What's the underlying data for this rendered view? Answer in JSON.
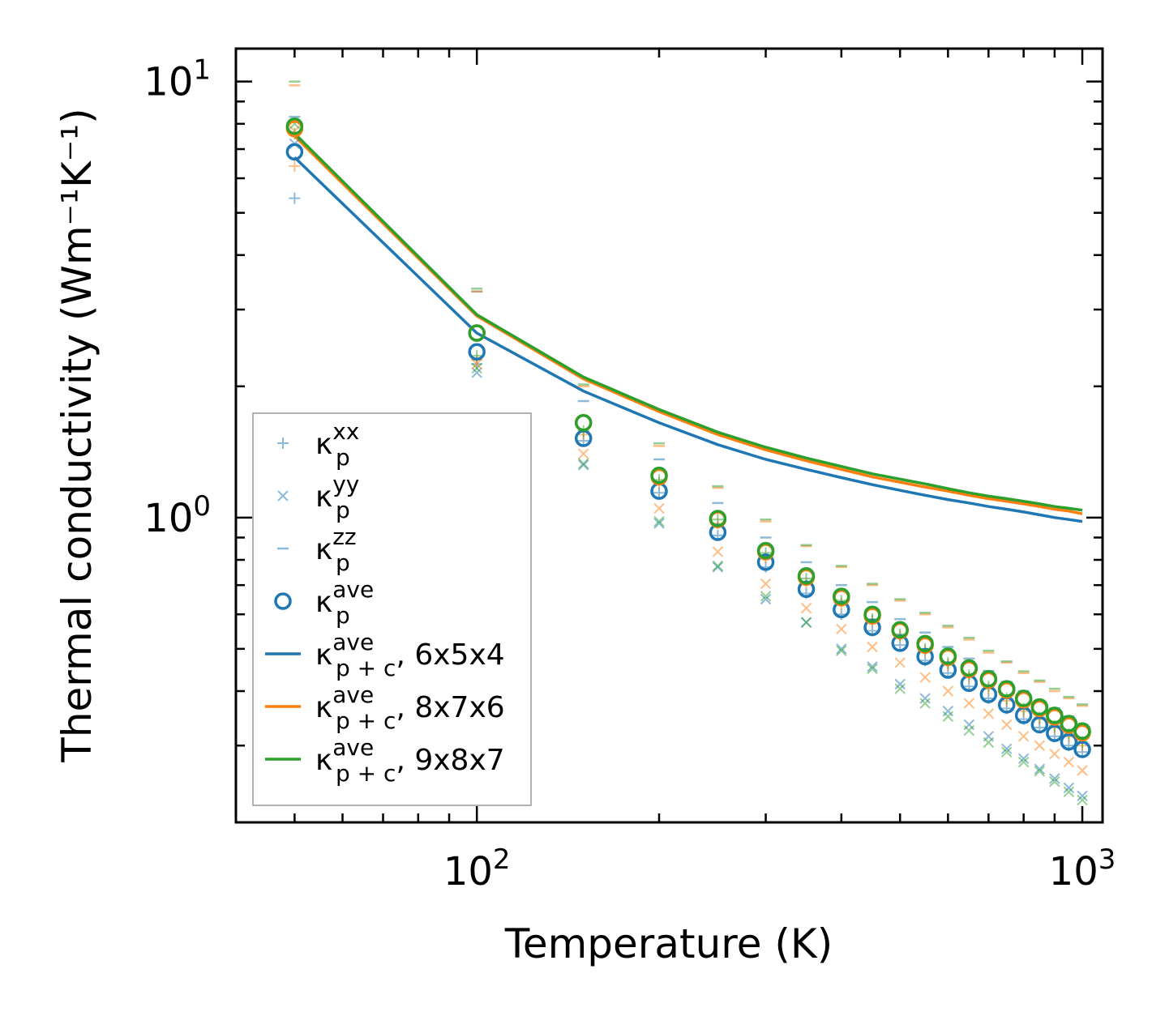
{
  "chart_data": {
    "type": "scatter",
    "xscale": "log",
    "yscale": "log",
    "xlabel": "Temperature (K)",
    "ylabel": "Thermal conductivity (Wm⁻¹K⁻¹)",
    "xlim": [
      40,
      1080
    ],
    "ylim": [
      0.2,
      11.9
    ],
    "x_ticks": [
      {
        "value": 100,
        "base": "10",
        "exp": "2"
      },
      {
        "value": 1000,
        "base": "10",
        "exp": "3"
      }
    ],
    "y_ticks": [
      {
        "value": 1,
        "base": "10",
        "exp": "0"
      },
      {
        "value": 10,
        "base": "10",
        "exp": "1"
      }
    ],
    "x": [
      50,
      100,
      150,
      200,
      250,
      300,
      350,
      400,
      450,
      500,
      550,
      600,
      650,
      700,
      750,
      800,
      850,
      900,
      950,
      1000
    ],
    "colors": {
      "blue": "#1f77b4",
      "orange": "#ff7f0e",
      "green": "#2ca02c"
    },
    "legend": {
      "placement": "lower-left",
      "entries": [
        {
          "marker": "plus",
          "symbol": "κ",
          "sub": "p",
          "sup": "xx",
          "suffix": ""
        },
        {
          "marker": "x",
          "symbol": "κ",
          "sub": "p",
          "sup": "yy",
          "suffix": ""
        },
        {
          "marker": "dash",
          "symbol": "κ",
          "sub": "p",
          "sup": "zz",
          "suffix": ""
        },
        {
          "marker": "circle",
          "symbol": "κ",
          "sub": "p",
          "sup": "ave",
          "suffix": ""
        },
        {
          "marker": "line",
          "color": "blue",
          "symbol": "κ",
          "sub": "p + c",
          "sup": "ave",
          "suffix": ", 6x5x4"
        },
        {
          "marker": "line",
          "color": "orange",
          "symbol": "κ",
          "sub": "p + c",
          "sup": "ave",
          "suffix": ", 8x7x6"
        },
        {
          "marker": "line",
          "color": "green",
          "symbol": "κ",
          "sub": "p + c",
          "sup": "ave",
          "suffix": ", 9x8x7"
        }
      ]
    },
    "series": [
      {
        "name": "6x5x4",
        "color": "blue",
        "xx": [
          5.4,
          2.25,
          1.5,
          1.14,
          0.91,
          0.77,
          0.67,
          0.6,
          0.55,
          0.51,
          0.47,
          0.44,
          0.41,
          0.385,
          0.365,
          0.345,
          0.33,
          0.315,
          0.3,
          0.29
        ],
        "yy": [
          7.2,
          2.15,
          1.32,
          0.97,
          0.77,
          0.65,
          0.575,
          0.5,
          0.455,
          0.415,
          0.385,
          0.36,
          0.335,
          0.315,
          0.295,
          0.28,
          0.265,
          0.252,
          0.24,
          0.23
        ],
        "zz": [
          8.3,
          3.3,
          1.85,
          1.36,
          1.08,
          0.9,
          0.79,
          0.7,
          0.64,
          0.585,
          0.545,
          0.505,
          0.475,
          0.445,
          0.42,
          0.4,
          0.38,
          0.365,
          0.35,
          0.335
        ],
        "ave": [
          6.9,
          2.4,
          1.52,
          1.15,
          0.925,
          0.79,
          0.685,
          0.615,
          0.56,
          0.515,
          0.48,
          0.447,
          0.417,
          0.393,
          0.372,
          0.352,
          0.335,
          0.32,
          0.306,
          0.294
        ],
        "line": [
          6.7,
          2.65,
          1.95,
          1.65,
          1.47,
          1.36,
          1.29,
          1.235,
          1.19,
          1.155,
          1.125,
          1.1,
          1.08,
          1.06,
          1.045,
          1.03,
          1.015,
          1.0,
          0.99,
          0.98
        ]
      },
      {
        "name": "8x7x6",
        "color": "orange",
        "xx": [
          6.4,
          2.3,
          1.55,
          1.2,
          0.97,
          0.81,
          0.71,
          0.635,
          0.58,
          0.535,
          0.495,
          0.46,
          0.43,
          0.405,
          0.38,
          0.36,
          0.345,
          0.33,
          0.315,
          0.3
        ],
        "yy": [
          7.7,
          2.25,
          1.4,
          1.05,
          0.835,
          0.705,
          0.62,
          0.555,
          0.505,
          0.465,
          0.43,
          0.4,
          0.375,
          0.355,
          0.335,
          0.315,
          0.3,
          0.287,
          0.275,
          0.263
        ],
        "zz": [
          9.8,
          3.3,
          2.0,
          1.46,
          1.17,
          0.98,
          0.86,
          0.77,
          0.7,
          0.645,
          0.6,
          0.56,
          0.525,
          0.49,
          0.465,
          0.44,
          0.42,
          0.4,
          0.385,
          0.37
        ],
        "ave": [
          7.8,
          2.65,
          1.65,
          1.24,
          0.99,
          0.835,
          0.73,
          0.655,
          0.595,
          0.55,
          0.51,
          0.478,
          0.449,
          0.424,
          0.402,
          0.382,
          0.365,
          0.349,
          0.334,
          0.321
        ],
        "line": [
          7.5,
          2.9,
          2.08,
          1.75,
          1.55,
          1.43,
          1.35,
          1.29,
          1.24,
          1.205,
          1.175,
          1.15,
          1.125,
          1.105,
          1.09,
          1.075,
          1.06,
          1.045,
          1.035,
          1.02
        ]
      },
      {
        "name": "9x8x7",
        "color": "green",
        "xx": [
          7.6,
          2.35,
          1.58,
          1.22,
          0.99,
          0.83,
          0.725,
          0.645,
          0.585,
          0.54,
          0.5,
          0.465,
          0.435,
          0.41,
          0.385,
          0.365,
          0.348,
          0.333,
          0.319,
          0.306
        ],
        "yy": [
          8.0,
          2.2,
          1.33,
          0.98,
          0.775,
          0.66,
          0.575,
          0.495,
          0.45,
          0.405,
          0.375,
          0.35,
          0.325,
          0.305,
          0.29,
          0.275,
          0.262,
          0.248,
          0.235,
          0.225
        ],
        "zz": [
          10.0,
          3.35,
          2.02,
          1.48,
          1.18,
          0.99,
          0.865,
          0.775,
          0.705,
          0.65,
          0.605,
          0.565,
          0.53,
          0.495,
          0.468,
          0.444,
          0.423,
          0.405,
          0.388,
          0.373
        ],
        "ave": [
          7.9,
          2.65,
          1.65,
          1.25,
          0.995,
          0.84,
          0.735,
          0.66,
          0.6,
          0.553,
          0.514,
          0.481,
          0.452,
          0.427,
          0.405,
          0.385,
          0.368,
          0.352,
          0.337,
          0.324
        ],
        "line": [
          7.6,
          2.92,
          2.1,
          1.77,
          1.57,
          1.45,
          1.37,
          1.31,
          1.26,
          1.225,
          1.195,
          1.165,
          1.14,
          1.12,
          1.105,
          1.09,
          1.075,
          1.06,
          1.05,
          1.04
        ]
      }
    ]
  }
}
